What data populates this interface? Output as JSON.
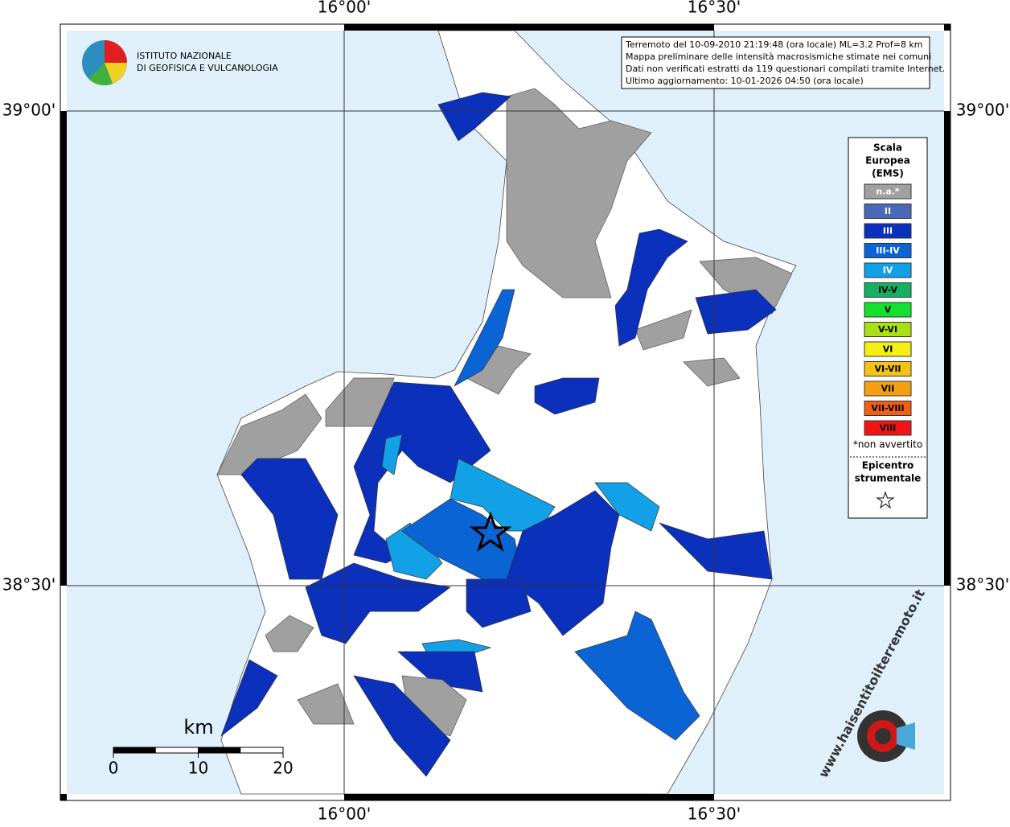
{
  "graticule": {
    "top": [
      "16°00'",
      "16°30'"
    ],
    "bottom": [
      "16°00'",
      "16°30'"
    ],
    "left": [
      "39°00'",
      "38°30'"
    ],
    "right": [
      "39°00'",
      "38°30'"
    ]
  },
  "logo": {
    "line1": "ISTITUTO NAZIONALE",
    "line2": "DI GEOFISICA E VULCANOLOGIA"
  },
  "info": [
    "Terremoto del 10-09-2010 21:19:48 (ora locale) ML=3.2 Prof=8 km",
    "Mappa preliminare delle intensità macrosismiche stimate nei comuni",
    "Dati non verificati estratti da 119 questionari compilati tramite Internet.",
    "Ultimo aggiornamento: 10-01-2026 04:50 (ora locale)"
  ],
  "legend": {
    "title": [
      "Scala",
      "Europea",
      "(EMS)"
    ],
    "items": [
      {
        "label": "n.a.*",
        "color": "#a0a0a0"
      },
      {
        "label": "II",
        "color": "#4a68b8"
      },
      {
        "label": "III",
        "color": "#0a30bc"
      },
      {
        "label": "III-IV",
        "color": "#0a64d4"
      },
      {
        "label": "IV",
        "color": "#12a0e6"
      },
      {
        "label": "IV-V",
        "color": "#12b060"
      },
      {
        "label": "V",
        "color": "#14e030"
      },
      {
        "label": "V-VI",
        "color": "#a8e014"
      },
      {
        "label": "VI",
        "color": "#f4f014"
      },
      {
        "label": "VI-VII",
        "color": "#f4c414"
      },
      {
        "label": "VII",
        "color": "#f4a014"
      },
      {
        "label": "VII-VIII",
        "color": "#f06014"
      },
      {
        "label": "VIII",
        "color": "#f01414"
      }
    ],
    "note": "*non avvertito",
    "epicentre": [
      "Epicentro",
      "strumentale"
    ]
  },
  "scale": {
    "unit": "km",
    "ticks": [
      0,
      10,
      20
    ]
  },
  "site": "www.haisentitoilterremoto.it"
}
